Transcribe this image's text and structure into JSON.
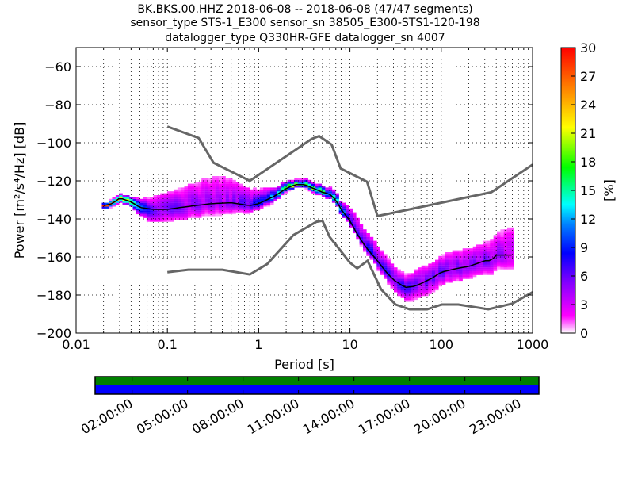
{
  "chart_data": {
    "type": "heatmap",
    "title_lines": [
      "BK.BKS.00.HHZ   2018-06-08 -- 2018-06-08  (47/47 segments)",
      "sensor_type STS-1_E300 sensor_sn 38505_E300-STS1-120-198",
      "datalogger_type Q330HR-GFE datalogger_sn 4007"
    ],
    "xlabel": "Period [s]",
    "ylabel": "Power [m²/s⁴/Hz] [dB]",
    "xscale": "log",
    "xlim": [
      0.01,
      1000
    ],
    "ylim": [
      -200,
      -50
    ],
    "xticks": [
      {
        "v": 0.01,
        "label": "0.01"
      },
      {
        "v": 0.1,
        "label": "0.1"
      },
      {
        "v": 1,
        "label": "1"
      },
      {
        "v": 10,
        "label": "10"
      },
      {
        "v": 100,
        "label": "100"
      },
      {
        "v": 1000,
        "label": "1000"
      }
    ],
    "yticks": [
      {
        "v": -60,
        "label": "−60"
      },
      {
        "v": -80,
        "label": "−80"
      },
      {
        "v": -100,
        "label": "−100"
      },
      {
        "v": -120,
        "label": "−120"
      },
      {
        "v": -140,
        "label": "−140"
      },
      {
        "v": -160,
        "label": "−160"
      },
      {
        "v": -180,
        "label": "−180"
      },
      {
        "v": -200,
        "label": "−200"
      }
    ],
    "grid": true,
    "noise_models": {
      "high": [
        [
          0.1,
          -91.5
        ],
        [
          0.22,
          -97.5
        ],
        [
          0.32,
          -110.5
        ],
        [
          0.8,
          -120
        ],
        [
          3.8,
          -98
        ],
        [
          4.6,
          -96.5
        ],
        [
          6.3,
          -101
        ],
        [
          7.9,
          -113.5
        ],
        [
          15.4,
          -120.5
        ],
        [
          20,
          -138.5
        ],
        [
          354,
          -126
        ],
        [
          1000,
          -111.5
        ]
      ],
      "low": [
        [
          0.1,
          -168
        ],
        [
          0.17,
          -166.7
        ],
        [
          0.4,
          -166.7
        ],
        [
          0.8,
          -169.2
        ],
        [
          1.24,
          -163.7
        ],
        [
          2.4,
          -148.5
        ],
        [
          4.3,
          -141.5
        ],
        [
          5,
          -141
        ],
        [
          6,
          -149.5
        ],
        [
          10,
          -163
        ],
        [
          12,
          -166
        ],
        [
          15.6,
          -162
        ],
        [
          21.9,
          -177
        ],
        [
          31.6,
          -185
        ],
        [
          45,
          -187.5
        ],
        [
          70,
          -187.5
        ],
        [
          101,
          -185
        ],
        [
          154,
          -185
        ],
        [
          328,
          -187.5
        ],
        [
          600,
          -184.5
        ],
        [
          1000,
          -178.5
        ]
      ],
      "color": "#666666"
    },
    "mode_curve": [
      [
        0.02,
        -133
      ],
      [
        0.025,
        -132
      ],
      [
        0.03,
        -129
      ],
      [
        0.04,
        -131
      ],
      [
        0.05,
        -134
      ],
      [
        0.07,
        -135
      ],
      [
        0.1,
        -135
      ],
      [
        0.2,
        -133
      ],
      [
        0.3,
        -132
      ],
      [
        0.5,
        -131.5
      ],
      [
        0.8,
        -133
      ],
      [
        1,
        -132
      ],
      [
        1.5,
        -128
      ],
      [
        2,
        -124
      ],
      [
        2.5,
        -122
      ],
      [
        3.2,
        -122
      ],
      [
        4,
        -124
      ],
      [
        5,
        -126
      ],
      [
        6,
        -127
      ],
      [
        7,
        -130
      ],
      [
        8,
        -135
      ],
      [
        10,
        -141
      ],
      [
        12,
        -148
      ],
      [
        15,
        -155
      ],
      [
        20,
        -162
      ],
      [
        25,
        -168
      ],
      [
        30,
        -172
      ],
      [
        40,
        -176
      ],
      [
        50,
        -175.5
      ],
      [
        60,
        -174
      ],
      [
        80,
        -171
      ],
      [
        100,
        -168
      ],
      [
        150,
        -166
      ],
      [
        200,
        -165
      ],
      [
        300,
        -162
      ],
      [
        350,
        -162
      ],
      [
        400,
        -159
      ],
      [
        600,
        -159
      ]
    ],
    "spread_up_db": [
      [
        0.02,
        1
      ],
      [
        0.04,
        2
      ],
      [
        0.07,
        6
      ],
      [
        0.15,
        10
      ],
      [
        0.4,
        14
      ],
      [
        0.8,
        8
      ],
      [
        1.5,
        4
      ],
      [
        2.5,
        2
      ],
      [
        6,
        3
      ],
      [
        8,
        4
      ],
      [
        12,
        8
      ],
      [
        20,
        8
      ],
      [
        40,
        6
      ],
      [
        60,
        8
      ],
      [
        100,
        8
      ],
      [
        300,
        9
      ],
      [
        600,
        14
      ]
    ],
    "spread_down_db": [
      [
        0.02,
        1
      ],
      [
        0.04,
        2
      ],
      [
        0.07,
        6
      ],
      [
        0.15,
        6
      ],
      [
        0.4,
        5
      ],
      [
        0.8,
        3
      ],
      [
        1.5,
        2
      ],
      [
        2.5,
        1
      ],
      [
        6,
        2
      ],
      [
        8,
        2
      ],
      [
        12,
        2
      ],
      [
        20,
        3
      ],
      [
        40,
        6
      ],
      [
        60,
        7
      ],
      [
        100,
        6
      ],
      [
        300,
        6
      ],
      [
        600,
        7
      ]
    ],
    "colorbar": {
      "label": "[%]",
      "range": [
        0,
        30
      ],
      "ticks": [
        "0",
        "3",
        "6",
        "9",
        "12",
        "15",
        "18",
        "21",
        "24",
        "27",
        "30"
      ]
    },
    "coverage": {
      "tick_labels": [
        "02:00:00",
        "05:00:00",
        "08:00:00",
        "11:00:00",
        "14:00:00",
        "17:00:00",
        "20:00:00",
        "23:00:00"
      ],
      "tick_hours": [
        2,
        5,
        8,
        11,
        14,
        17,
        20,
        23
      ],
      "range_hours": [
        0,
        24
      ],
      "data_color": "#008000",
      "gap_color": "#0000ff"
    }
  }
}
